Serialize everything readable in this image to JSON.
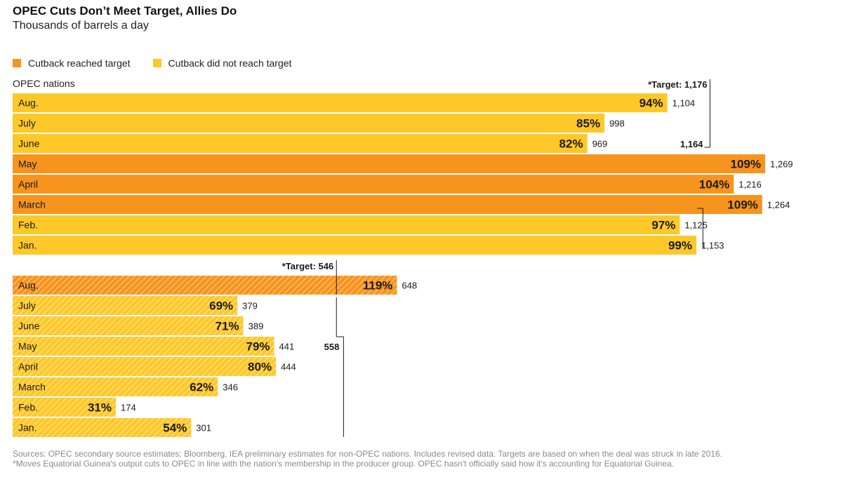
{
  "header": {
    "title": "OPEC Cuts Don’t Meet Target, Allies Do",
    "subtitle": "Thousands of barrels a day"
  },
  "legend": {
    "reached_label": "Cutback reached target",
    "not_reached_label": "Cutback did not reach target"
  },
  "colors": {
    "reached": "#f7941d",
    "not_reached": "#ffc829",
    "hatch": "#ffffff"
  },
  "footer": {
    "line1": "Sources: OPEC secondary source estimates; Bloomberg, IEA preliminary estimates for non-OPEC nations. Includes revised data. Targets are based on when the deal was struck in late 2016.",
    "line2": "*Moves Equatorial Guinea's output cuts to OPEC in line with the nation's membership in the producer group. OPEC hasn't officially said how it's accounting for Equatorial Guinea."
  },
  "chart_data": {
    "type": "bar",
    "orientation": "horizontal",
    "groups": [
      {
        "label": "OPEC nations",
        "target_label": "*Target: 1,176",
        "target": 1176,
        "alt_target_label": "1,164",
        "alt_target": 1164,
        "hatched": false,
        "categories": [
          "Aug.",
          "July",
          "June",
          "May",
          "April",
          "March",
          "Feb.",
          "Jan."
        ],
        "values": [
          1104,
          998,
          969,
          1269,
          1216,
          1264,
          1125,
          1153
        ],
        "value_labels": [
          "1,104",
          "998",
          "969",
          "1,269",
          "1,216",
          "1,264",
          "1,125",
          "1,153"
        ],
        "percent_labels": [
          "94%",
          "85%",
          "82%",
          "109%",
          "104%",
          "109%",
          "97%",
          "99%"
        ],
        "reached": [
          false,
          false,
          false,
          true,
          true,
          true,
          false,
          false
        ]
      },
      {
        "label": "",
        "target_label": "*Target: 546",
        "target": 546,
        "alt_target_label": "558",
        "alt_target": 558,
        "hatched": true,
        "categories": [
          "Aug.",
          "July",
          "June",
          "May",
          "April",
          "March",
          "Feb.",
          "Jan."
        ],
        "values": [
          648,
          379,
          389,
          441,
          444,
          346,
          174,
          301
        ],
        "value_labels": [
          "648",
          "379",
          "389",
          "441",
          "444",
          "346",
          "174",
          "301"
        ],
        "percent_labels": [
          "119%",
          "69%",
          "71%",
          "79%",
          "80%",
          "62%",
          "31%",
          "54%"
        ],
        "reached": [
          true,
          false,
          false,
          false,
          false,
          false,
          false,
          false
        ]
      }
    ]
  }
}
